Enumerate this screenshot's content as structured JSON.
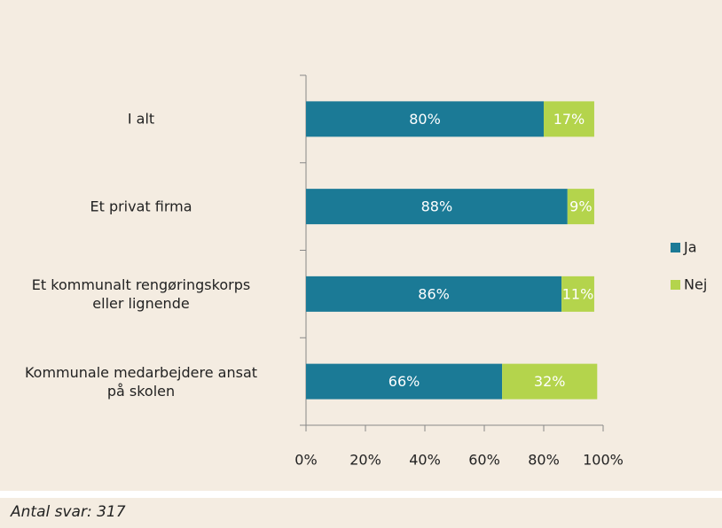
{
  "chart_data": {
    "type": "stacked-barh",
    "categories": [
      "I alt",
      "Et privat firma",
      "Et kommunalt rengøringskorps\neller lignende",
      "Kommunale medarbejdere ansat\npå skolen"
    ],
    "series": [
      {
        "name": "Ja",
        "color": "#1b7a96",
        "values": [
          80,
          88,
          86,
          66
        ],
        "value_labels": [
          "80%",
          "88%",
          "86%",
          "66%"
        ]
      },
      {
        "name": "Nej",
        "color": "#b4d44c",
        "values": [
          17,
          9,
          11,
          32
        ],
        "value_labels": [
          "17%",
          "9%",
          "11%",
          "32%"
        ]
      }
    ],
    "xlim": [
      0,
      100
    ],
    "xticks": [
      {
        "value": 0,
        "label": "0%"
      },
      {
        "value": 20,
        "label": "20%"
      },
      {
        "value": 40,
        "label": "40%"
      },
      {
        "value": 60,
        "label": "60%"
      },
      {
        "value": 80,
        "label": "80%"
      },
      {
        "value": 100,
        "label": "100%"
      }
    ],
    "legend": "right"
  },
  "footnote": "Antal svar: 317"
}
